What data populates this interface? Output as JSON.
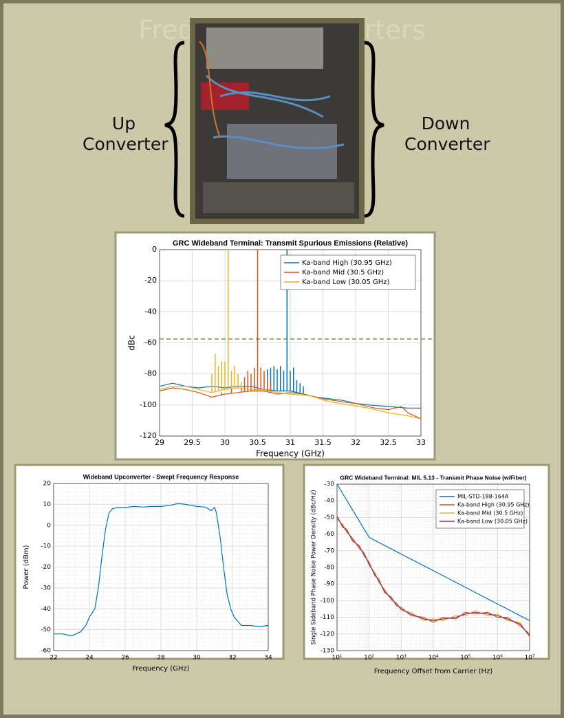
{
  "slide": {
    "title": "Frequency Converters",
    "left_label": "Up Converter",
    "right_label": "Down Converter"
  },
  "chart_data": [
    {
      "type": "line",
      "title": "GRC Wideband Terminal: Transmit Spurious Emissions (Relative)",
      "x_label": "Frequency (GHz)",
      "y_label": "dBc",
      "xlim": [
        29,
        33
      ],
      "xticks": [
        29,
        29.5,
        30,
        30.5,
        31,
        31.5,
        32,
        32.5,
        33
      ],
      "ylim": [
        -120,
        0
      ],
      "yticks": [
        -120,
        -100,
        -80,
        -60,
        -40,
        -20,
        0
      ],
      "grid": true,
      "legend": "upper right",
      "hlines": [
        {
          "value": -57.5,
          "color": "#a3a07a"
        }
      ],
      "series": [
        {
          "name": "Ka-band High (30.95 GHz)",
          "color": "#0072bd",
          "x": [
            29,
            29.2,
            29.4,
            29.6,
            29.8,
            30,
            30.2,
            30.4,
            30.6,
            30.8,
            31,
            31.2,
            31.4,
            31.6,
            31.8,
            32,
            32.2,
            32.5,
            32.8,
            33
          ],
          "values": [
            -88,
            -86,
            -88,
            -89,
            -88,
            -89,
            -88,
            -88,
            -90,
            -91,
            -91,
            -93,
            -95,
            -96,
            -97,
            -99,
            -100,
            -101,
            -102,
            -102
          ],
          "peaks": {
            "x": [
              30.65,
              30.7,
              30.75,
              30.8,
              30.85,
              30.9,
              30.95,
              31.0,
              31.05,
              31.1,
              31.15,
              31.2
            ],
            "values": [
              -77,
              -76,
              -75,
              -77,
              -75,
              -78,
              0,
              -78,
              -76,
              -84,
              -86,
              -88
            ]
          }
        },
        {
          "name": "Ka-band Mid (30.5 GHz)",
          "color": "#d95319",
          "x": [
            29,
            29.2,
            29.4,
            29.6,
            29.8,
            30,
            30.2,
            30.4,
            30.6,
            30.8,
            31,
            31.2,
            31.5,
            31.8,
            32,
            32.3,
            32.5,
            32.7,
            32.8,
            33
          ],
          "values": [
            -91,
            -89,
            -90,
            -92,
            -95,
            -93,
            -92,
            -91,
            -91,
            -93,
            -92,
            -93,
            -96,
            -98,
            -99,
            -102,
            -103,
            -101,
            -105,
            -109
          ],
          "peaks": {
            "x": [
              29.95,
              30.1,
              30.25,
              30.3,
              30.35,
              30.4,
              30.45,
              30.5,
              30.55,
              30.6,
              30.65,
              30.7
            ],
            "values": [
              -92,
              -88,
              -85,
              -82,
              -78,
              -80,
              -76,
              0,
              -76,
              -78,
              -82,
              -85
            ]
          }
        },
        {
          "name": "Ka-band Low (30.05 GHz)",
          "color": "#edb120",
          "x": [
            29,
            29.2,
            29.4,
            29.6,
            29.8,
            30,
            30.2,
            30.4,
            30.6,
            30.8,
            31,
            31.3,
            31.6,
            31.9,
            32.2,
            32.5,
            32.8,
            33
          ],
          "values": [
            -90,
            -88,
            -88,
            -90,
            -92,
            -90,
            -89,
            -90,
            -90,
            -92,
            -93,
            -94,
            -98,
            -100,
            -102,
            -105,
            -107,
            -109
          ],
          "peaks": {
            "x": [
              29.8,
              29.85,
              29.9,
              29.95,
              30.0,
              30.05,
              30.1,
              30.15,
              30.2,
              30.25
            ],
            "values": [
              -80,
              -67,
              -75,
              -72,
              -72,
              0,
              -78,
              -75,
              -80,
              -85
            ]
          }
        }
      ]
    },
    {
      "type": "line",
      "title": "Wideband Upconverter - Swept Frequency Response",
      "x_label": "Frequency (GHz)",
      "y_label": "Power (dBm)",
      "xlim": [
        22,
        34
      ],
      "xticks": [
        22,
        24,
        26,
        28,
        30,
        32,
        34
      ],
      "ylim": [
        -60,
        20
      ],
      "yticks": [
        -60,
        -50,
        -40,
        -30,
        -20,
        -10,
        0,
        10,
        20
      ],
      "grid": true,
      "minor_grid": true,
      "series": [
        {
          "color": "#0072bd",
          "x": [
            22,
            22.5,
            23,
            23.5,
            23.8,
            24,
            24.3,
            24.5,
            24.7,
            24.9,
            25.1,
            25.3,
            25.6,
            26,
            26.5,
            27,
            27.5,
            28,
            28.5,
            29,
            29.5,
            30,
            30.5,
            30.8,
            31,
            31.1,
            31.3,
            31.5,
            31.7,
            31.9,
            32.1,
            32.3,
            32.5,
            33,
            33.5,
            34
          ],
          "values": [
            -52,
            -52,
            -53,
            -51,
            -48,
            -44,
            -40,
            -30,
            -15,
            -2,
            6,
            8,
            8.5,
            8.5,
            9,
            8.7,
            9,
            9,
            9.5,
            10.5,
            9.8,
            9,
            8.7,
            7,
            8.5,
            6,
            -5,
            -20,
            -33,
            -40,
            -44,
            -46,
            -48,
            -48,
            -48.5,
            -48
          ]
        }
      ]
    },
    {
      "type": "line",
      "title": "GRC Wideband Terminal: MIL 5.13 - Transmit Phase Noise (w/Fiber)",
      "x_label": "Frequency Offset from Carrier (Hz)",
      "y_label": "Single Sideband Phase Noise Power Density (dBc/Hz)",
      "xscale": "log",
      "xlim": [
        10,
        10000000
      ],
      "xticks": [
        {
          "value": 10,
          "label": "10¹"
        },
        {
          "value": 100,
          "label": "10²"
        },
        {
          "value": 1000,
          "label": "10³"
        },
        {
          "value": 10000,
          "label": "10⁴"
        },
        {
          "value": 100000,
          "label": "10⁵"
        },
        {
          "value": 1000000,
          "label": "10⁶"
        },
        {
          "value": 10000000,
          "label": "10⁷"
        }
      ],
      "ylim": [
        -130,
        -30
      ],
      "yticks": [
        -130,
        -120,
        -110,
        -100,
        -90,
        -80,
        -70,
        -60,
        -50,
        -40,
        -30
      ],
      "grid": true,
      "minor_grid": true,
      "legend": "upper right",
      "series": [
        {
          "name": "MIL-STD-188-164A",
          "color": "#0072bd",
          "x": [
            10,
            100,
            10000000
          ],
          "values": [
            -30,
            -62,
            -112
          ]
        },
        {
          "name": "Ka-band High (30.95 GHz)",
          "color": "#d95319",
          "x": [
            10,
            15,
            20,
            30,
            50,
            70,
            100,
            150,
            200,
            300,
            500,
            700,
            1000,
            2000,
            5000,
            10000,
            20000,
            50000,
            100000,
            200000,
            500000,
            1000000,
            2000000,
            5000000,
            10000000
          ],
          "values": [
            -49,
            -56,
            -57,
            -64,
            -67,
            -73,
            -77,
            -85,
            -87,
            -95,
            -98,
            -103,
            -104,
            -109,
            -110,
            -113,
            -110,
            -111,
            -107,
            -108,
            -107,
            -110,
            -110,
            -115,
            -120
          ]
        },
        {
          "name": "Ka-band Mid (30.5 GHz)",
          "color": "#edb120",
          "x": [
            10,
            15,
            20,
            30,
            50,
            70,
            100,
            150,
            200,
            300,
            500,
            700,
            1000,
            2000,
            5000,
            10000,
            20000,
            50000,
            100000,
            200000,
            500000,
            1000000,
            2000000,
            5000000,
            10000000
          ],
          "values": [
            -51,
            -54,
            -59,
            -62,
            -69,
            -71,
            -79,
            -83,
            -89,
            -93,
            -100,
            -101,
            -106,
            -107,
            -112,
            -111,
            -112,
            -109,
            -109,
            -106,
            -109,
            -108,
            -112,
            -113,
            -122
          ]
        },
        {
          "name": "Ka-band Low (30.05 GHz)",
          "color": "#7e2f8e",
          "x": [
            10,
            15,
            20,
            30,
            50,
            70,
            100,
            150,
            200,
            300,
            500,
            700,
            1000,
            2000,
            5000,
            10000,
            20000,
            50000,
            100000,
            200000,
            500000,
            1000000,
            2000000,
            5000000,
            10000000
          ],
          "values": [
            -50,
            -55,
            -58,
            -63,
            -68,
            -72,
            -78,
            -84,
            -88,
            -94,
            -99,
            -102,
            -105,
            -108,
            -111,
            -112,
            -111,
            -110,
            -108,
            -107,
            -108,
            -109,
            -111,
            -114,
            -121
          ]
        }
      ]
    }
  ]
}
